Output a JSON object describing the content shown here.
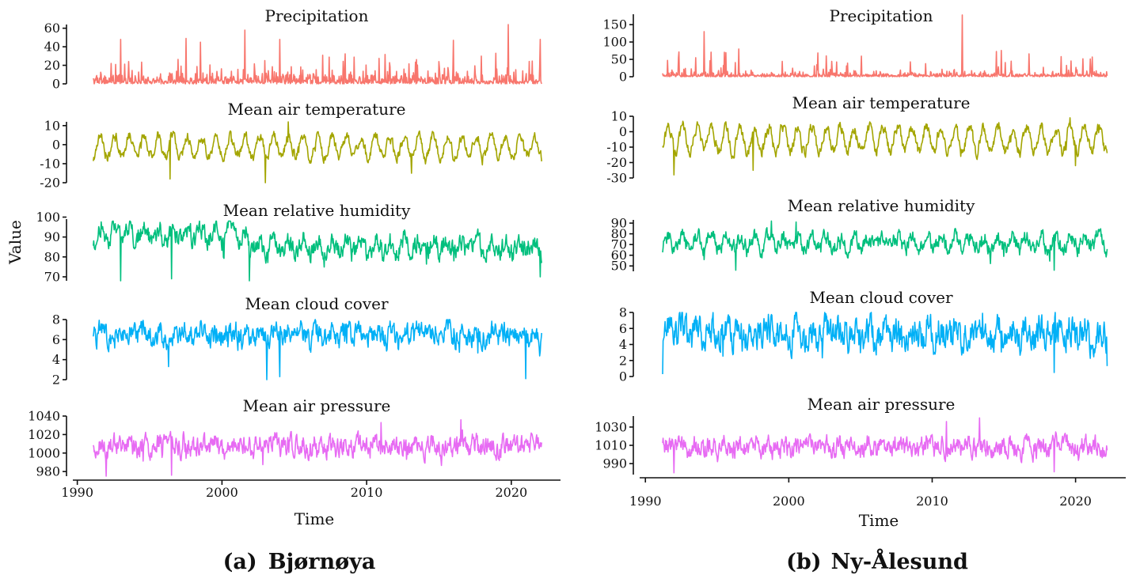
{
  "chart_data": [
    {
      "type": "line",
      "station": "Bjørnøya",
      "caption_label": "(a)",
      "caption_name": "Bjørnøya",
      "xlabel": "Time",
      "ylabel": "Value",
      "x_ticks": [
        "1990",
        "2000",
        "2010",
        "2020"
      ],
      "x_tick_values": [
        1990,
        2000,
        2010,
        2020
      ],
      "xlim": [
        1989.8,
        2023.4
      ],
      "time_range": [
        1991.1,
        2022.1
      ],
      "series": [
        {
          "name": "Precipitation",
          "color": "#F8766D",
          "ylim": [
            0,
            64
          ],
          "y_ticks": [
            0,
            20,
            40,
            60
          ],
          "y_tick_labels": [
            "0",
            "20",
            "40",
            "60"
          ],
          "data_min": 0,
          "data_max": 64,
          "mean": 4,
          "seasonal_amplitude": 0,
          "noise": 5,
          "shift_year": null,
          "shift_delta": 0,
          "peaks": [
            [
              1993,
              48
            ],
            [
              1997.5,
              49
            ],
            [
              1998.5,
              45
            ],
            [
              2001.6,
              58
            ],
            [
              2004,
              48
            ],
            [
              2016,
              47
            ],
            [
              2019.8,
              64
            ],
            [
              2022,
              48
            ]
          ]
        },
        {
          "name": "Mean air temperature",
          "color": "#A3A500",
          "ylim": [
            -20,
            12
          ],
          "y_ticks": [
            -20,
            -10,
            0,
            10
          ],
          "y_tick_labels": [
            "-20",
            "-10",
            "0",
            "10"
          ],
          "data_min": -20,
          "data_max": 12,
          "mean": -1,
          "seasonal_amplitude": 5.5,
          "noise": 2.2,
          "shift_year": null,
          "shift_delta": 0,
          "peaks": [
            [
              2004.6,
              12
            ],
            [
              2003,
              -20
            ],
            [
              1996.4,
              -18
            ],
            [
              2013.1,
              -15
            ]
          ]
        },
        {
          "name": "Mean relative humidity",
          "color": "#00BF7D",
          "ylim": [
            68,
            99
          ],
          "y_ticks": [
            70,
            80,
            90,
            100
          ],
          "y_tick_labels": [
            "70",
            "80",
            "90",
            "100"
          ],
          "data_min": 68,
          "data_max": 98,
          "mean": 85,
          "seasonal_amplitude": 3,
          "noise": 4,
          "shift_year": 2001.8,
          "shift_delta": 6,
          "peaks": [
            [
              1993,
              68
            ],
            [
              1996.5,
              69
            ],
            [
              2001.9,
              68
            ],
            [
              2022,
              70
            ]
          ]
        },
        {
          "name": "Mean cloud cover",
          "color": "#00B0F6",
          "ylim": [
            2,
            8
          ],
          "y_ticks": [
            2,
            4,
            6,
            8
          ],
          "y_tick_labels": [
            "2",
            "4",
            "6",
            "8"
          ],
          "data_min": 2,
          "data_max": 8,
          "mean": 6.5,
          "seasonal_amplitude": 0.3,
          "noise": 0.9,
          "shift_year": null,
          "shift_delta": 0,
          "peaks": [
            [
              2003.1,
              2
            ],
            [
              2004,
              2.3
            ],
            [
              2021,
              2.1
            ],
            [
              1996.3,
              3.3
            ]
          ]
        },
        {
          "name": "Mean air pressure",
          "color": "#E76BF3",
          "ylim": [
            975,
            1040
          ],
          "y_ticks": [
            980,
            1000,
            1020,
            1040
          ],
          "y_tick_labels": [
            "980",
            "1000",
            "1020",
            "1040"
          ],
          "data_min": 975,
          "data_max": 1038,
          "mean": 1008,
          "seasonal_amplitude": 3,
          "noise": 9,
          "shift_year": null,
          "shift_delta": 0,
          "peaks": [
            [
              1992,
              975
            ],
            [
              1996.5,
              976
            ],
            [
              2016.5,
              1036
            ],
            [
              2011,
              1033
            ]
          ]
        }
      ]
    },
    {
      "type": "line",
      "station": "Ny-Ålesund",
      "caption_label": "(b)",
      "caption_name": "Ny-Ålesund",
      "xlabel": "Time",
      "ylabel": "",
      "x_ticks": [
        "1990",
        "2000",
        "2010",
        "2020"
      ],
      "x_tick_values": [
        1990,
        2000,
        2010,
        2020
      ],
      "xlim": [
        1989.6,
        2023.5
      ],
      "time_range": [
        1991.2,
        2022.2
      ],
      "series": [
        {
          "name": "Precipitation",
          "color": "#F8766D",
          "ylim": [
            0,
            180
          ],
          "y_ticks": [
            0,
            50,
            100,
            150
          ],
          "y_tick_labels": [
            "0",
            "50",
            "100",
            "150"
          ],
          "data_min": 0,
          "data_max": 178,
          "mean": 5,
          "seasonal_amplitude": 0,
          "noise": 6,
          "shift_year": null,
          "shift_delta": 0,
          "peaks": [
            [
              1994.1,
              130
            ],
            [
              1996.5,
              80
            ],
            [
              2002.6,
              60
            ],
            [
              2012.1,
              178
            ],
            [
              2015.5,
              45
            ],
            [
              2019,
              58
            ]
          ]
        },
        {
          "name": "Mean air temperature",
          "color": "#A3A500",
          "ylim": [
            -30,
            10
          ],
          "y_ticks": [
            -30,
            -20,
            -10,
            0,
            10
          ],
          "y_tick_labels": [
            "-30",
            "-20",
            "-10",
            "0",
            "10"
          ],
          "data_min": -30,
          "data_max": 10,
          "mean": -5,
          "seasonal_amplitude": 8,
          "noise": 3,
          "shift_year": null,
          "shift_delta": 0,
          "peaks": [
            [
              1992,
              -28
            ],
            [
              1997.5,
              -25
            ],
            [
              2020,
              -22
            ],
            [
              2019.6,
              9
            ]
          ]
        },
        {
          "name": "Mean relative humidity",
          "color": "#00BF7D",
          "ylim": [
            45,
            93
          ],
          "y_ticks": [
            50,
            60,
            70,
            80,
            90
          ],
          "y_tick_labels": [
            "50",
            "60",
            "70",
            "80",
            "90"
          ],
          "data_min": 46,
          "data_max": 92,
          "mean": 72,
          "seasonal_amplitude": 6,
          "noise": 6,
          "shift_year": null,
          "shift_delta": 0,
          "peaks": [
            [
              1998.8,
              92
            ],
            [
              2000.5,
              91
            ],
            [
              1996.3,
              46
            ],
            [
              2018.5,
              46
            ]
          ]
        },
        {
          "name": "Mean cloud cover",
          "color": "#00B0F6",
          "ylim": [
            0,
            8
          ],
          "y_ticks": [
            0,
            2,
            4,
            6,
            8
          ],
          "y_tick_labels": [
            "0",
            "2",
            "4",
            "6",
            "8"
          ],
          "data_min": 0,
          "data_max": 8,
          "mean": 5.5,
          "seasonal_amplitude": 0.6,
          "noise": 1.6,
          "shift_year": null,
          "shift_delta": 0,
          "peaks": [
            [
              1991.2,
              0.3
            ],
            [
              2018.5,
              0.5
            ],
            [
              2022.2,
              1.3
            ],
            [
              2013.5,
              7.9
            ]
          ]
        },
        {
          "name": "Mean air pressure",
          "color": "#E76BF3",
          "ylim": [
            978,
            1042
          ],
          "y_ticks": [
            990,
            1010,
            1030
          ],
          "y_tick_labels": [
            "990",
            "1010",
            "1030"
          ],
          "data_min": 980,
          "data_max": 1040,
          "mean": 1008,
          "seasonal_amplitude": 3,
          "noise": 9,
          "shift_year": null,
          "shift_delta": 0,
          "peaks": [
            [
              1992,
              980
            ],
            [
              2013.3,
              1040
            ],
            [
              2011,
              1036
            ],
            [
              2018.5,
              981
            ]
          ]
        }
      ]
    }
  ]
}
